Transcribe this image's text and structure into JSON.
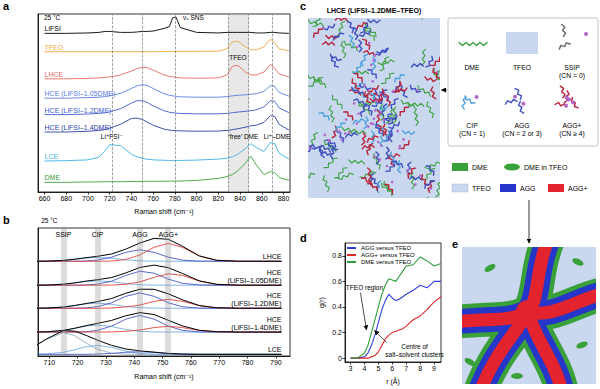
{
  "chart_data": [
    {
      "panel": "a",
      "type": "line",
      "x": [
        660,
        680,
        700,
        710,
        716,
        720,
        730,
        740,
        745,
        750,
        755,
        760,
        770,
        775,
        778,
        781,
        785,
        800,
        820,
        828,
        833,
        838,
        845,
        850,
        855,
        862,
        868,
        872,
        876,
        885
      ],
      "series": [
        {
          "name": "LiFSI",
          "color": "#000000",
          "values": [
            8.2,
            8.2,
            8.22,
            8.25,
            8.3,
            8.3,
            8.25,
            8.25,
            8.27,
            8.3,
            8.3,
            8.32,
            8.45,
            8.55,
            9.0,
            9.05,
            8.5,
            8.25,
            8.22,
            8.25,
            8.25,
            8.25,
            8.25,
            8.25,
            8.22,
            8.22,
            8.25,
            8.25,
            8.22,
            8.2
          ]
        },
        {
          "name": "TFEO",
          "color": "#f3a53a",
          "values": [
            7.25,
            7.25,
            7.25,
            7.25,
            7.25,
            7.25,
            7.25,
            7.25,
            7.25,
            7.25,
            7.25,
            7.25,
            7.26,
            7.26,
            7.26,
            7.26,
            7.27,
            7.27,
            7.28,
            7.4,
            7.75,
            7.8,
            7.5,
            7.35,
            7.35,
            7.5,
            7.9,
            7.7,
            7.4,
            7.3
          ]
        },
        {
          "name": "LHCE",
          "color": "#ea6b5e",
          "values": [
            5.85,
            5.85,
            5.87,
            5.9,
            5.93,
            5.95,
            6.05,
            6.25,
            6.38,
            6.45,
            6.42,
            6.3,
            6.05,
            5.98,
            5.95,
            5.93,
            5.9,
            5.88,
            5.9,
            6.05,
            6.5,
            6.55,
            6.2,
            6.05,
            6.05,
            6.2,
            6.6,
            6.4,
            6.1,
            5.95
          ]
        },
        {
          "name": "HCE (LiFSI–1.05DME)",
          "color": "#5a7ee0",
          "values": [
            4.85,
            4.85,
            4.88,
            4.9,
            4.93,
            4.97,
            5.1,
            5.35,
            5.48,
            5.55,
            5.5,
            5.35,
            5.08,
            5.0,
            4.97,
            4.95,
            4.92,
            4.9,
            4.9,
            4.93,
            4.97,
            5.0,
            5.02,
            5.05,
            5.08,
            5.2,
            5.5,
            5.45,
            5.15,
            4.95
          ]
        },
        {
          "name": "HCE (LiFSI–1.2DME)",
          "color": "#3e5ccf",
          "values": [
            4.0,
            4.0,
            4.03,
            4.06,
            4.1,
            4.15,
            4.3,
            4.6,
            4.72,
            4.72,
            4.62,
            4.45,
            4.2,
            4.12,
            4.1,
            4.08,
            4.06,
            4.04,
            4.04,
            4.06,
            4.1,
            4.13,
            4.17,
            4.2,
            4.25,
            4.4,
            4.72,
            4.68,
            4.35,
            4.1
          ]
        },
        {
          "name": "HCE (LiFSI–1.4DME)",
          "color": "#2b3fa8",
          "values": [
            3.1,
            3.1,
            3.14,
            3.18,
            3.23,
            3.3,
            3.5,
            3.8,
            3.82,
            3.75,
            3.6,
            3.45,
            3.25,
            3.2,
            3.18,
            3.17,
            3.16,
            3.14,
            3.15,
            3.18,
            3.22,
            3.27,
            3.35,
            3.42,
            3.45,
            3.6,
            3.95,
            3.9,
            3.5,
            3.2
          ]
        },
        {
          "name": "LCE",
          "color": "#3bb3e6",
          "values": [
            1.6,
            1.62,
            1.66,
            1.8,
            2.15,
            2.45,
            2.4,
            1.95,
            1.82,
            1.74,
            1.69,
            1.66,
            1.64,
            1.63,
            1.63,
            1.63,
            1.63,
            1.65,
            1.7,
            1.75,
            1.82,
            1.95,
            2.25,
            2.5,
            2.3,
            2.1,
            2.55,
            2.5,
            2.0,
            1.7
          ]
        },
        {
          "name": "DME",
          "color": "#3aa13a",
          "values": [
            0.5,
            0.5,
            0.52,
            0.52,
            0.53,
            0.53,
            0.53,
            0.54,
            0.54,
            0.55,
            0.55,
            0.55,
            0.56,
            0.56,
            0.56,
            0.56,
            0.57,
            0.6,
            0.7,
            0.8,
            0.9,
            1.1,
            1.5,
            1.85,
            1.4,
            0.9,
            1.05,
            1.0,
            0.75,
            0.6
          ]
        }
      ],
      "xlabel": "Raman shift (cm⁻¹)",
      "xlim": [
        654,
        886
      ],
      "xticks": [
        660,
        680,
        700,
        720,
        740,
        760,
        780,
        800,
        820,
        840,
        860,
        880
      ],
      "ylim": [
        0,
        9.2
      ],
      "tick_labels": "x",
      "vlines": [
        722,
        750,
        780,
        829,
        848,
        870
      ],
      "shaded": [
        [
          829,
          848
        ]
      ],
      "annotations": [
        {
          "text": "25 °C",
          "x": 667,
          "y": 9.0
        },
        {
          "text": "νₛ SNS",
          "x": 797,
          "y": 9.0
        },
        {
          "text": "TFEO",
          "x": 838,
          "y": 6.95
        },
        {
          "text": "Li⁺FSI⁻",
          "x": 722,
          "y": 2.85
        },
        {
          "text": "‘free’ DME",
          "x": 843,
          "y": 2.85
        },
        {
          "text": "Li⁺–DME",
          "x": 874,
          "y": 2.85
        }
      ]
    },
    {
      "panel": "b",
      "type": "line",
      "x": [
        703,
        709,
        715,
        719,
        723,
        727,
        732,
        737,
        742,
        747,
        752,
        757,
        763,
        769,
        777,
        792
      ],
      "components": [
        {
          "name": "SSIP",
          "x": 715,
          "color": "#93aec4"
        },
        {
          "name": "CIP",
          "x": 727,
          "color": "#74aee2"
        },
        {
          "name": "AGG",
          "x": 742,
          "color": "#4657c4"
        },
        {
          "name": "AGG+",
          "x": 752,
          "color": "#e2453c"
        }
      ],
      "samples": [
        {
          "name": "LHCE",
          "color": "#000000",
          "values": [
            7.4,
            7.41,
            7.47,
            7.56,
            7.68,
            7.79,
            7.97,
            8.35,
            8.83,
            9.19,
            9.12,
            8.58,
            7.82,
            7.48,
            7.4,
            7.4
          ],
          "components": {
            "CIP": [
              7.4,
              7.41,
              7.47,
              7.56,
              7.66,
              7.7,
              7.63,
              7.51,
              7.43,
              7.41,
              7.4,
              7.4,
              7.4,
              7.4,
              7.4,
              7.4
            ],
            "AGG": [
              7.4,
              7.4,
              7.4,
              7.4,
              7.42,
              7.49,
              7.72,
              8.1,
              8.3,
              8.1,
              7.72,
              7.49,
              7.41,
              7.4,
              7.4,
              7.4
            ],
            "AGG+": [
              7.4,
              7.4,
              7.4,
              7.4,
              7.4,
              7.4,
              7.42,
              7.54,
              7.9,
              8.49,
              8.8,
              8.49,
              7.81,
              7.48,
              7.4,
              7.4
            ]
          }
        },
        {
          "name": "HCE (LiFSI–1.05DME)",
          "color": "#000000",
          "values": [
            5.53,
            5.54,
            5.61,
            5.71,
            5.85,
            5.96,
            6.13,
            6.49,
            6.92,
            7.1,
            6.9,
            6.45,
            5.87,
            5.6,
            5.53,
            5.53
          ],
          "components": {
            "CIP": [
              5.53,
              5.54,
              5.61,
              5.71,
              5.83,
              5.88,
              5.8,
              5.66,
              5.57,
              5.54,
              5.53,
              5.53,
              5.53,
              5.53,
              5.53,
              5.53
            ],
            "AGG": [
              5.53,
              5.53,
              5.53,
              5.53,
              5.55,
              5.61,
              5.85,
              6.29,
              6.62,
              6.47,
              6.01,
              5.68,
              5.55,
              5.53,
              5.53,
              5.53
            ],
            "AGG+": [
              5.53,
              5.53,
              5.53,
              5.53,
              5.53,
              5.53,
              5.54,
              5.6,
              5.79,
              6.15,
              6.42,
              6.3,
              5.85,
              5.6,
              5.53,
              5.53
            ]
          }
        },
        {
          "name": "HCE (LiFSI–1.2DME)",
          "color": "#000000",
          "values": [
            3.73,
            3.75,
            3.82,
            3.95,
            4.1,
            4.25,
            4.49,
            4.9,
            5.22,
            5.21,
            4.86,
            4.39,
            3.94,
            3.77,
            3.73,
            3.73
          ],
          "components": {
            "CIP": [
              3.73,
              3.75,
              3.82,
              3.94,
              4.07,
              4.13,
              4.04,
              3.87,
              3.77,
              3.74,
              3.73,
              3.73,
              3.73,
              3.73,
              3.73,
              3.73
            ],
            "AGG": [
              3.73,
              3.73,
              3.73,
              3.74,
              3.76,
              3.85,
              4.16,
              4.66,
              4.93,
              4.66,
              4.16,
              3.85,
              3.74,
              3.73,
              3.73,
              3.73
            ],
            "AGG+": [
              3.73,
              3.73,
              3.73,
              3.73,
              3.73,
              3.73,
              3.75,
              3.83,
              3.98,
              4.27,
              4.43,
              4.27,
              3.93,
              3.77,
              3.73,
              3.73
            ]
          }
        },
        {
          "name": "HCE (LiFSI–1.4DME)",
          "color": "#000000",
          "values": [
            1.87,
            1.89,
            2.0,
            2.17,
            2.37,
            2.55,
            2.78,
            3.14,
            3.39,
            3.24,
            2.79,
            2.35,
            2.01,
            1.9,
            1.87,
            1.87
          ],
          "components": {
            "CIP": [
              1.87,
              1.89,
              2.0,
              2.16,
              2.34,
              2.42,
              2.3,
              2.07,
              1.93,
              1.88,
              1.87,
              1.87,
              1.87,
              1.87,
              1.87,
              1.87
            ],
            "AGG": [
              1.87,
              1.87,
              1.87,
              1.88,
              1.9,
              2.0,
              2.34,
              2.88,
              3.17,
              2.88,
              2.34,
              2.0,
              1.88,
              1.87,
              1.87,
              1.87
            ],
            "AGG+": [
              1.87,
              1.87,
              1.87,
              1.87,
              1.87,
              1.87,
              1.88,
              1.93,
              2.03,
              2.22,
              2.32,
              2.22,
              2.0,
              1.9,
              1.87,
              1.87
            ]
          }
        },
        {
          "name": "LCE",
          "color": "#000000",
          "values": [
            0.52,
            1.33,
            1.99,
            1.94,
            1.61,
            1.24,
            0.83,
            0.55,
            0.4,
            0.3,
            0.2,
            0.15,
            0.13,
            0.13,
            0.13,
            0.13
          ],
          "components": {
            "SSIP": [
              0.52,
              1.3,
              1.83,
              1.58,
              1.01,
              0.52,
              0.22,
              0.14,
              0.13,
              0.13,
              0.13,
              0.13,
              0.13,
              0.13,
              0.13,
              0.13
            ],
            "CIP": [
              0.13,
              0.16,
              0.29,
              0.49,
              0.73,
              0.83,
              0.67,
              0.38,
              0.2,
              0.14,
              0.13,
              0.13,
              0.13,
              0.13,
              0.13,
              0.13
            ],
            "AGG": [
              0.13,
              0.13,
              0.13,
              0.13,
              0.13,
              0.15,
              0.2,
              0.29,
              0.33,
              0.29,
              0.2,
              0.15,
              0.13,
              0.13,
              0.13,
              0.13
            ]
          }
        }
      ],
      "xlabel": "Raman shift (cm⁻¹)",
      "xlim": [
        706,
        795
      ],
      "xticks": [
        710,
        720,
        730,
        740,
        750,
        760,
        770,
        780,
        790
      ],
      "ylim": [
        0,
        10
      ],
      "tick_labels": "x",
      "annotations": [
        {
          "text": "25 °C",
          "x": 710,
          "y": 10.55
        }
      ]
    },
    {
      "panel": "d",
      "type": "line",
      "x": [
        3,
        3.5,
        4,
        4.25,
        4.5,
        4.75,
        5,
        5.25,
        5.5,
        5.75,
        6,
        6.25,
        6.5,
        6.75,
        7,
        7.5,
        8,
        8.5,
        9,
        9.5
      ],
      "series": [
        {
          "name": "AGG versus TFEO",
          "color": "#2f3fd6",
          "values": [
            0,
            0,
            0.01,
            0.04,
            0.1,
            0.18,
            0.28,
            0.38,
            0.45,
            0.5,
            0.47,
            0.45,
            0.46,
            0.48,
            0.5,
            0.53,
            0.57,
            0.55,
            0.6,
            0.6
          ]
        },
        {
          "name": "AGG+ versus TFEO",
          "color": "#e02b2b",
          "values": [
            0,
            0,
            0,
            0,
            0.01,
            0.02,
            0.05,
            0.1,
            0.15,
            0.18,
            0.2,
            0.21,
            0.22,
            0.23,
            0.25,
            0.3,
            0.33,
            0.38,
            0.44,
            0.48
          ]
        },
        {
          "name": "DME versus TFEO",
          "color": "#2e9e3a",
          "values": [
            0,
            0,
            0.04,
            0.1,
            0.2,
            0.3,
            0.4,
            0.5,
            0.57,
            0.62,
            0.61,
            0.6,
            0.64,
            0.68,
            0.72,
            0.73,
            0.79,
            0.76,
            0.72,
            0.74
          ]
        }
      ],
      "xlabel": "r (Å)",
      "ylabel": "g(r)",
      "xlim": [
        2.6,
        9.5
      ],
      "xticks": [
        3,
        4,
        5,
        6,
        7,
        8,
        9
      ],
      "ylim": [
        -0.03,
        0.9
      ],
      "yticks": [
        0,
        0.2,
        0.4,
        0.6,
        0.8
      ],
      "legend": "upper left",
      "annotations": [
        {
          "text": "TFEO region",
          "x": 4.0,
          "y": 0.55
        },
        {
          "text": "Centre of\nsalt–solvent clusters",
          "x": 7.6,
          "y": 0.06
        }
      ]
    }
  ],
  "diagrams": {
    "c": {
      "panel": "c",
      "title": "LHCE (LiFSI–1.2DME–TFEO)",
      "key_items": [
        {
          "name": "DME",
          "color": "#3aa13a"
        },
        {
          "name": "TFEO",
          "color": "#c9d7ef"
        },
        {
          "name": "SSIP (CN = 0)",
          "color": "#6b6b6b"
        },
        {
          "name": "CIP (CN = 1)",
          "color": "#4fa3dc"
        },
        {
          "name": "AGG (CN = 2 or 3)",
          "color": "#3f4fbf"
        },
        {
          "name": "AGG+ (CN ≥ 4)",
          "color": "#b8243a"
        }
      ],
      "regions": [
        {
          "name": "DME",
          "color": "#3aa13a"
        },
        {
          "name": "DME in TFEO",
          "color": "#3aa13a"
        },
        {
          "name": "TFEO",
          "color": "#c9d7ef"
        },
        {
          "name": "AGG",
          "color": "#2536c8"
        },
        {
          "name": "AGG+",
          "color": "#e3232d"
        }
      ]
    },
    "e": {
      "panel": "e"
    }
  }
}
